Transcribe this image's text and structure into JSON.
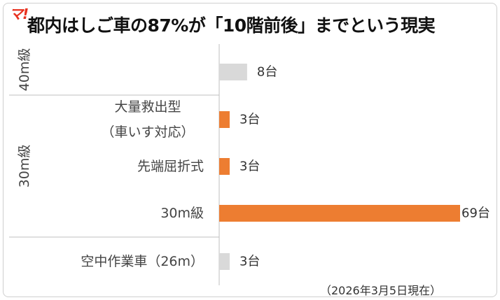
{
  "brand": {
    "logo_text": "マ!"
  },
  "title": "都内はしご車の87%が「10階前後」までという現実",
  "as_of_note": "（2026年3月5日現在）",
  "colors": {
    "accent": "#ED7D31",
    "muted": "#D9D9D9",
    "logo": "#E8311F"
  },
  "chart_data": {
    "type": "bar",
    "orientation": "horizontal",
    "title": "都内はしご車の87%が「10階前後」までという現実",
    "groups": [
      {
        "label": "40m級",
        "rows": [
          0
        ]
      },
      {
        "label": "30m級",
        "rows": [
          1,
          2,
          3
        ]
      },
      {
        "label": "",
        "rows": [
          4
        ]
      }
    ],
    "rows": [
      {
        "category": "",
        "value": 8,
        "value_label": "8台",
        "color": "#D9D9D9"
      },
      {
        "category": "大量救出型",
        "category_sub": "（車いす対応）",
        "value": 3,
        "value_label": "3台",
        "color": "#ED7D31"
      },
      {
        "category": "先端屈折式",
        "value": 3,
        "value_label": "3台",
        "color": "#ED7D31"
      },
      {
        "category": "30m級",
        "value": 69,
        "value_label": "69台",
        "color": "#ED7D31"
      },
      {
        "category": "空中作業車（26m）",
        "value": 3,
        "value_label": "3台",
        "color": "#D9D9D9"
      }
    ],
    "unit": "台",
    "xlim": [
      0,
      69
    ],
    "grid": false,
    "legend": "none"
  }
}
